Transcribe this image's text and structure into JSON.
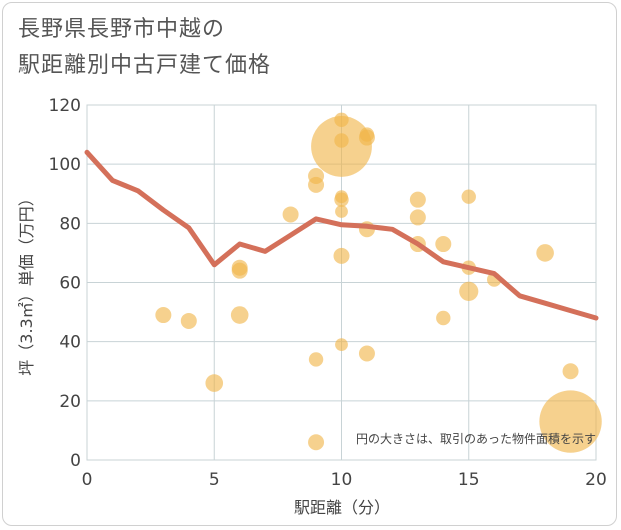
{
  "title_line1": "長野県長野市中越の",
  "title_line2": "駅距離別中古戸建て価格",
  "chart_data": {
    "type": "scatter",
    "title": "長野県長野市中越の駅距離別中古戸建て価格",
    "xlabel": "駅距離（分）",
    "ylabel": "坪（3.3㎡）単価（万円）",
    "xlim": [
      0,
      20
    ],
    "ylim": [
      0,
      120
    ],
    "xticks": [
      0,
      5,
      10,
      15,
      20
    ],
    "yticks": [
      0,
      20,
      40,
      60,
      80,
      100,
      120
    ],
    "grid": true,
    "annotation": "円の大きさは、取引のあった物件面積を示す",
    "colors": {
      "bubble": "#f0b449",
      "line": "#d4705a"
    },
    "points": [
      {
        "x": 3,
        "y": 49,
        "size": 1
      },
      {
        "x": 4,
        "y": 47,
        "size": 1
      },
      {
        "x": 5,
        "y": 26,
        "size": 1.1
      },
      {
        "x": 6,
        "y": 65,
        "size": 1
      },
      {
        "x": 6,
        "y": 64,
        "size": 1
      },
      {
        "x": 6,
        "y": 49,
        "size": 1.1
      },
      {
        "x": 8,
        "y": 83,
        "size": 1
      },
      {
        "x": 9,
        "y": 96,
        "size": 1
      },
      {
        "x": 9,
        "y": 93,
        "size": 1
      },
      {
        "x": 9,
        "y": 34,
        "size": 0.9
      },
      {
        "x": 9,
        "y": 6,
        "size": 1
      },
      {
        "x": 10,
        "y": 115,
        "size": 0.9
      },
      {
        "x": 10,
        "y": 108,
        "size": 0.9
      },
      {
        "x": 10,
        "y": 106,
        "size": 3.8
      },
      {
        "x": 10,
        "y": 89,
        "size": 0.8
      },
      {
        "x": 10,
        "y": 88,
        "size": 0.9
      },
      {
        "x": 10,
        "y": 84,
        "size": 0.8
      },
      {
        "x": 10,
        "y": 69,
        "size": 1
      },
      {
        "x": 10,
        "y": 39,
        "size": 0.8
      },
      {
        "x": 11,
        "y": 110,
        "size": 0.9
      },
      {
        "x": 11,
        "y": 109,
        "size": 1
      },
      {
        "x": 11,
        "y": 78,
        "size": 1
      },
      {
        "x": 11,
        "y": 36,
        "size": 1
      },
      {
        "x": 13,
        "y": 88,
        "size": 1
      },
      {
        "x": 13,
        "y": 82,
        "size": 1
      },
      {
        "x": 13,
        "y": 73,
        "size": 1
      },
      {
        "x": 14,
        "y": 73,
        "size": 1
      },
      {
        "x": 14,
        "y": 48,
        "size": 0.9
      },
      {
        "x": 15,
        "y": 89,
        "size": 0.9
      },
      {
        "x": 15,
        "y": 65,
        "size": 0.9
      },
      {
        "x": 15,
        "y": 57,
        "size": 1.2
      },
      {
        "x": 16,
        "y": 61,
        "size": 0.9
      },
      {
        "x": 18,
        "y": 70,
        "size": 1.1
      },
      {
        "x": 19,
        "y": 30,
        "size": 1
      },
      {
        "x": 19,
        "y": 13,
        "size": 3.9
      }
    ],
    "trend_line": {
      "x": [
        0,
        1,
        2,
        3,
        4,
        5,
        6,
        7,
        8,
        9,
        10,
        11,
        12,
        13,
        14,
        15,
        16,
        17,
        18,
        19,
        20
      ],
      "y": [
        104,
        94.5,
        91,
        84.5,
        78.5,
        66,
        73,
        70.5,
        76,
        81.5,
        79.5,
        79,
        78,
        73,
        67,
        65,
        63,
        55.5,
        53,
        50.5,
        48
      ]
    }
  }
}
